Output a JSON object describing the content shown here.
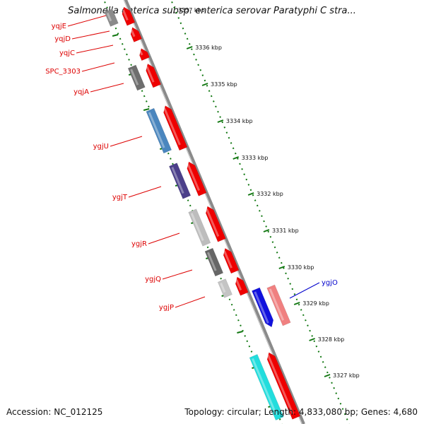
{
  "title": "Salmonella enterica subsp. enterica serovar Paratyphi C stra...",
  "footer": {
    "accession": "Accession: NC_012125",
    "summary": "Topology: circular; Length: 4,833,080 bp; Genes: 4,680"
  },
  "scale": {
    "top_partial_label": "3337 kbp",
    "ticks": [
      "3336 kbp",
      "3335 kbp",
      "3334 kbp",
      "3333 kbp",
      "3332 kbp",
      "3331 kbp",
      "3330 kbp",
      "3329 kbp",
      "3328 kbp",
      "3327 kbp"
    ]
  },
  "gene_labels": [
    {
      "name": "yqjE",
      "color": "#dd0000"
    },
    {
      "name": "yqjD",
      "color": "#dd0000"
    },
    {
      "name": "yqjC",
      "color": "#dd0000"
    },
    {
      "name": "SPC_3303",
      "color": "#dd0000"
    },
    {
      "name": "yqjA",
      "color": "#dd0000"
    },
    {
      "name": "ygjU",
      "color": "#dd0000"
    },
    {
      "name": "ygjT",
      "color": "#dd0000"
    },
    {
      "name": "ygjR",
      "color": "#dd0000"
    },
    {
      "name": "ygjQ",
      "color": "#dd0000"
    },
    {
      "name": "ygjP",
      "color": "#dd0000"
    },
    {
      "name": "ygjO",
      "color": "#0000cc"
    }
  ],
  "colors": {
    "backbone": "#8a8a8a",
    "forward_gene": "#ee0000",
    "reverse_gene": "#f08080",
    "tick": "#117711"
  }
}
